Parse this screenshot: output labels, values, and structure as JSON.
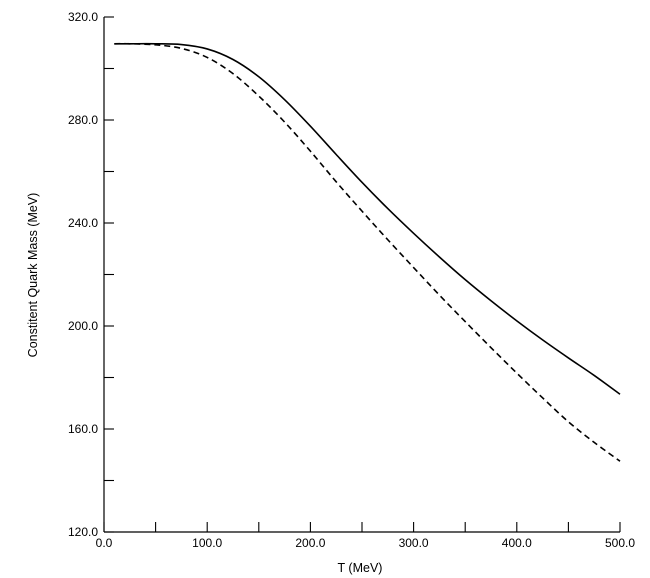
{
  "chart_data": {
    "type": "line",
    "title": "",
    "xlabel": "T (MeV)",
    "ylabel": "Constitent Quark Mass (MeV)",
    "xlim": [
      0,
      500
    ],
    "ylim": [
      120,
      320
    ],
    "x_ticks": [
      0,
      100,
      200,
      300,
      400,
      500
    ],
    "x_minor_ticks": [
      50,
      150,
      250,
      350,
      450
    ],
    "x_tick_labels": [
      "0.0",
      "100.0",
      "200.0",
      "300.0",
      "400.0",
      "500.0"
    ],
    "y_ticks": [
      120,
      160,
      200,
      240,
      280,
      320
    ],
    "y_minor_ticks": [
      140,
      180,
      220,
      260,
      300
    ],
    "y_tick_labels": [
      "120.0",
      "160.0",
      "200.0",
      "240.0",
      "280.0",
      "320.0"
    ],
    "grid": false,
    "legend": "none",
    "x": [
      10,
      25,
      50,
      75,
      100,
      125,
      150,
      175,
      200,
      225,
      250,
      275,
      300,
      325,
      350,
      375,
      400,
      425,
      450,
      475,
      500
    ],
    "series": [
      {
        "style": "solid",
        "color": "#000000",
        "values": [
          309.6,
          309.6,
          309.6,
          309.3,
          307.6,
          303.5,
          296.8,
          287.9,
          277.6,
          266.6,
          255.8,
          245.6,
          236.0,
          226.8,
          218.0,
          209.8,
          202.0,
          194.6,
          187.6,
          180.8,
          173.5
        ]
      },
      {
        "style": "dashed",
        "color": "#000000",
        "values": [
          309.6,
          309.6,
          309.2,
          307.8,
          304.3,
          298.0,
          289.3,
          279.2,
          267.9,
          256.0,
          244.6,
          233.5,
          222.7,
          212.0,
          201.7,
          191.6,
          181.7,
          172.1,
          162.8,
          154.8,
          147.5
        ]
      }
    ]
  }
}
